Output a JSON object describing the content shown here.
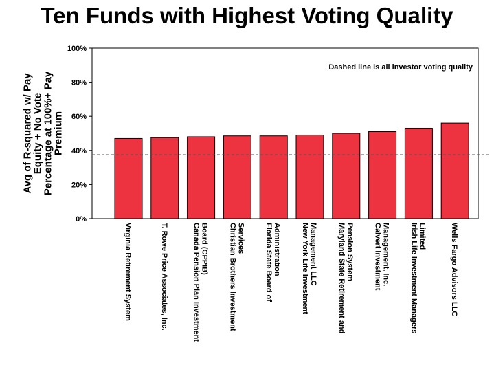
{
  "chart_data": {
    "type": "bar",
    "title": "Ten Funds with Highest Voting Quality",
    "ylabel_lines": [
      "Avg of R-squared w/ Pay",
      "Equity + No Vote",
      "Percentage at 100%+ Pay",
      "Premium"
    ],
    "xlabel": "",
    "ylim": [
      0,
      100
    ],
    "yticks": [
      0,
      20,
      40,
      60,
      80,
      100
    ],
    "ytick_labels": [
      "0%",
      "20%",
      "40%",
      "60%",
      "80%",
      "100%"
    ],
    "categories": [
      [
        "Virginia Retirement System"
      ],
      [
        "T. Rowe Price Associates, Inc."
      ],
      [
        "Canada Pension Plan Investment",
        "Board (CPPIB)"
      ],
      [
        "Christian Brothers Investment",
        "Services"
      ],
      [
        "Florida State Board of",
        "Administration"
      ],
      [
        "New York Life Investment",
        "Management LLC"
      ],
      [
        "Maryland State Retirement and",
        "Pension System"
      ],
      [
        "Calvert Investment",
        "Management, Inc."
      ],
      [
        "Irish Life Investment Managers",
        "Limited"
      ],
      [
        "Wells Fargo Advisors LLC"
      ]
    ],
    "values": [
      47,
      47.5,
      48,
      48.5,
      48.5,
      49,
      50,
      51,
      53,
      56
    ],
    "reference_line": {
      "value": 37.5,
      "style": "dashed"
    },
    "annotation": "Dashed line is all investor voting quality",
    "bar_color": "#ee3340",
    "bar_edge_color": "#000000",
    "grid": false,
    "legend": "none"
  }
}
